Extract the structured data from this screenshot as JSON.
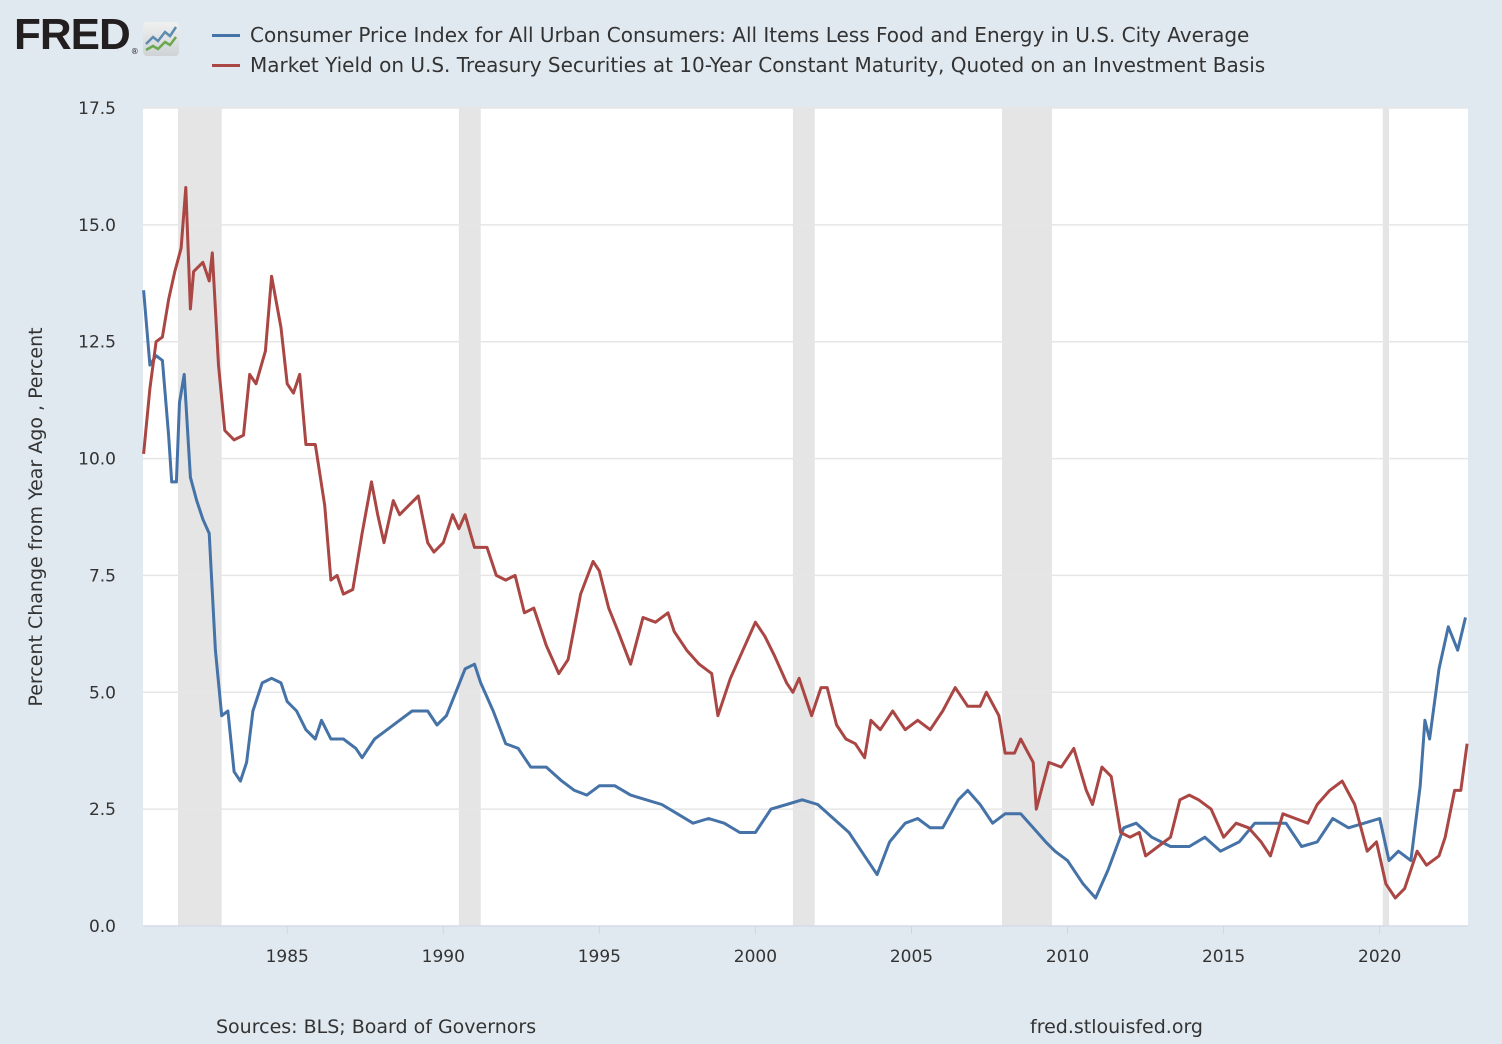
{
  "logo": {
    "text": "FRED",
    "registered": "®"
  },
  "chart_data": {
    "type": "line",
    "title": "",
    "xlabel": "",
    "ylabel": "Percent Change from Year Ago , Percent",
    "ylim": [
      0,
      17.5
    ],
    "xlim": [
      1980.38,
      2022.83
    ],
    "yticks": [
      "0.0",
      "2.5",
      "5.0",
      "7.5",
      "10.0",
      "12.5",
      "15.0",
      "17.5"
    ],
    "xticks": [
      "1985",
      "1990",
      "1995",
      "2000",
      "2005",
      "2010",
      "2015",
      "2020"
    ],
    "grid": true,
    "legend_position": "top",
    "recessions": [
      [
        1981.5,
        1982.9
      ],
      [
        1990.5,
        1991.2
      ],
      [
        2001.2,
        2001.9
      ],
      [
        2007.9,
        2009.5
      ],
      [
        2020.1,
        2020.3
      ]
    ],
    "series": [
      {
        "name": "Consumer Price Index for All Urban Consumers: All Items Less Food and Energy in U.S. City Average",
        "color": "#4572a7",
        "x": [
          1980.4,
          1980.6,
          1980.8,
          1981.0,
          1981.2,
          1981.3,
          1981.45,
          1981.55,
          1981.7,
          1981.9,
          1982.1,
          1982.3,
          1982.5,
          1982.7,
          1982.9,
          1983.1,
          1983.3,
          1983.5,
          1983.7,
          1983.9,
          1984.2,
          1984.5,
          1984.8,
          1985.0,
          1985.3,
          1985.6,
          1985.9,
          1986.1,
          1986.4,
          1986.8,
          1987.2,
          1987.4,
          1987.8,
          1988.2,
          1988.6,
          1989.0,
          1989.5,
          1989.8,
          1990.1,
          1990.4,
          1990.7,
          1991.0,
          1991.2,
          1991.6,
          1992.0,
          1992.4,
          1992.8,
          1993.3,
          1993.8,
          1994.2,
          1994.6,
          1995.0,
          1995.5,
          1996.0,
          1996.5,
          1997.0,
          1997.5,
          1998.0,
          1998.5,
          1999.0,
          1999.5,
          2000.0,
          2000.5,
          2001.0,
          2001.5,
          2002.0,
          2002.5,
          2003.0,
          2003.5,
          2003.9,
          2004.3,
          2004.8,
          2005.2,
          2005.6,
          2006.0,
          2006.5,
          2006.8,
          2007.2,
          2007.6,
          2008.0,
          2008.5,
          2008.9,
          2009.3,
          2009.6,
          2010.0,
          2010.5,
          2010.9,
          2011.3,
          2011.8,
          2012.2,
          2012.7,
          2013.3,
          2013.9,
          2014.4,
          2014.9,
          2015.5,
          2016.0,
          2016.5,
          2017.0,
          2017.5,
          2018.0,
          2018.5,
          2019.0,
          2019.5,
          2020.0,
          2020.3,
          2020.6,
          2021.0,
          2021.3,
          2021.45,
          2021.6,
          2021.9,
          2022.2,
          2022.5,
          2022.75
        ],
        "values": [
          13.6,
          12.0,
          12.2,
          12.1,
          10.5,
          9.5,
          9.5,
          11.2,
          11.8,
          9.6,
          9.1,
          8.7,
          8.4,
          5.9,
          4.5,
          4.6,
          3.3,
          3.1,
          3.5,
          4.6,
          5.2,
          5.3,
          5.2,
          4.8,
          4.6,
          4.2,
          4.0,
          4.4,
          4.0,
          4.0,
          3.8,
          3.6,
          4.0,
          4.2,
          4.4,
          4.6,
          4.6,
          4.3,
          4.5,
          5.0,
          5.5,
          5.6,
          5.2,
          4.6,
          3.9,
          3.8,
          3.4,
          3.4,
          3.1,
          2.9,
          2.8,
          3.0,
          3.0,
          2.8,
          2.7,
          2.6,
          2.4,
          2.2,
          2.3,
          2.2,
          2.0,
          2.0,
          2.5,
          2.6,
          2.7,
          2.6,
          2.3,
          2.0,
          1.5,
          1.1,
          1.8,
          2.2,
          2.3,
          2.1,
          2.1,
          2.7,
          2.9,
          2.6,
          2.2,
          2.4,
          2.4,
          2.1,
          1.8,
          1.6,
          1.4,
          0.9,
          0.6,
          1.2,
          2.1,
          2.2,
          1.9,
          1.7,
          1.7,
          1.9,
          1.6,
          1.8,
          2.2,
          2.2,
          2.2,
          1.7,
          1.8,
          2.3,
          2.1,
          2.2,
          2.3,
          1.4,
          1.6,
          1.4,
          3.0,
          4.4,
          4.0,
          5.5,
          6.4,
          5.9,
          6.6
        ]
      },
      {
        "name": "Market Yield on U.S. Treasury Securities at 10-Year Constant Maturity, Quoted on an Investment Basis",
        "color": "#aa4643",
        "x": [
          1980.4,
          1980.6,
          1980.8,
          1981.0,
          1981.2,
          1981.4,
          1981.6,
          1981.75,
          1981.9,
          1982.0,
          1982.3,
          1982.5,
          1982.6,
          1982.8,
          1983.0,
          1983.3,
          1983.6,
          1983.8,
          1984.0,
          1984.3,
          1984.5,
          1984.8,
          1985.0,
          1985.2,
          1985.4,
          1985.6,
          1985.9,
          1986.2,
          1986.4,
          1986.6,
          1986.8,
          1987.1,
          1987.4,
          1987.7,
          1987.9,
          1988.1,
          1988.4,
          1988.6,
          1988.9,
          1989.2,
          1989.5,
          1989.7,
          1990.0,
          1990.3,
          1990.5,
          1990.7,
          1991.0,
          1991.4,
          1991.7,
          1992.0,
          1992.3,
          1992.6,
          1992.9,
          1993.3,
          1993.7,
          1994.0,
          1994.4,
          1994.8,
          1995.0,
          1995.3,
          1995.6,
          1996.0,
          1996.4,
          1996.8,
          1997.2,
          1997.4,
          1997.8,
          1998.2,
          1998.6,
          1998.8,
          1999.2,
          1999.6,
          2000.0,
          2000.3,
          2000.6,
          2001.0,
          2001.2,
          2001.4,
          2001.8,
          2002.1,
          2002.3,
          2002.6,
          2002.9,
          2003.2,
          2003.5,
          2003.7,
          2004.0,
          2004.4,
          2004.8,
          2005.2,
          2005.6,
          2006.0,
          2006.4,
          2006.8,
          2007.2,
          2007.4,
          2007.8,
          2008.0,
          2008.3,
          2008.5,
          2008.9,
          2009.0,
          2009.4,
          2009.8,
          2010.2,
          2010.6,
          2010.8,
          2011.1,
          2011.4,
          2011.7,
          2012.0,
          2012.3,
          2012.5,
          2012.9,
          2013.3,
          2013.6,
          2013.9,
          2014.2,
          2014.6,
          2015.0,
          2015.4,
          2015.8,
          2016.2,
          2016.5,
          2016.9,
          2017.3,
          2017.7,
          2018.0,
          2018.4,
          2018.8,
          2019.2,
          2019.6,
          2019.9,
          2020.2,
          2020.5,
          2020.8,
          2021.2,
          2021.5,
          2021.9,
          2022.1,
          2022.4,
          2022.6,
          2022.8
        ],
        "values": [
          10.1,
          11.5,
          12.5,
          12.6,
          13.4,
          14.0,
          14.5,
          15.8,
          13.2,
          14.0,
          14.2,
          13.8,
          14.4,
          12.0,
          10.6,
          10.4,
          10.5,
          11.8,
          11.6,
          12.3,
          13.9,
          12.8,
          11.6,
          11.4,
          11.8,
          10.3,
          10.3,
          9.0,
          7.4,
          7.5,
          7.1,
          7.2,
          8.4,
          9.5,
          8.8,
          8.2,
          9.1,
          8.8,
          9.0,
          9.2,
          8.2,
          8.0,
          8.2,
          8.8,
          8.5,
          8.8,
          8.1,
          8.1,
          7.5,
          7.4,
          7.5,
          6.7,
          6.8,
          6.0,
          5.4,
          5.7,
          7.1,
          7.8,
          7.6,
          6.8,
          6.3,
          5.6,
          6.6,
          6.5,
          6.7,
          6.3,
          5.9,
          5.6,
          5.4,
          4.5,
          5.3,
          5.9,
          6.5,
          6.2,
          5.8,
          5.2,
          5.0,
          5.3,
          4.5,
          5.1,
          5.1,
          4.3,
          4.0,
          3.9,
          3.6,
          4.4,
          4.2,
          4.6,
          4.2,
          4.4,
          4.2,
          4.6,
          5.1,
          4.7,
          4.7,
          5.0,
          4.5,
          3.7,
          3.7,
          4.0,
          3.5,
          2.5,
          3.5,
          3.4,
          3.8,
          2.9,
          2.6,
          3.4,
          3.2,
          2.0,
          1.9,
          2.0,
          1.5,
          1.7,
          1.9,
          2.7,
          2.8,
          2.7,
          2.5,
          1.9,
          2.2,
          2.1,
          1.8,
          1.5,
          2.4,
          2.3,
          2.2,
          2.6,
          2.9,
          3.1,
          2.6,
          1.6,
          1.8,
          0.9,
          0.6,
          0.8,
          1.6,
          1.3,
          1.5,
          1.9,
          2.9,
          2.9,
          3.9
        ]
      }
    ]
  },
  "footer": {
    "sources": "Sources: BLS; Board of Governors",
    "site": "fred.stlouisfed.org"
  }
}
